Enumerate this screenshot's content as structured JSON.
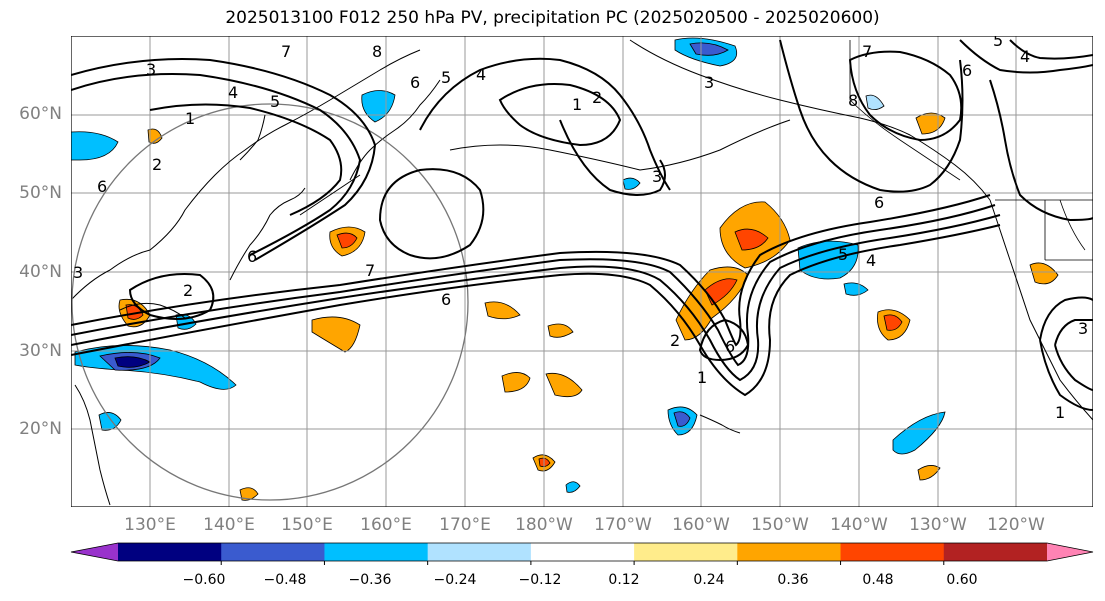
{
  "title": "2025013100 F012 250 hPa PV, precipitation PC (2025020500 - 2025020600)",
  "lat_labels": [
    "60°N",
    "50°N",
    "40°N",
    "30°N",
    "20°N"
  ],
  "lon_labels": [
    "130°E",
    "140°E",
    "150°E",
    "160°E",
    "170°E",
    "180°W",
    "170°W",
    "160°W",
    "150°W",
    "140°W",
    "130°W",
    "120°W"
  ],
  "contour_labels": [
    "1",
    "2",
    "3",
    "4",
    "5",
    "6",
    "7",
    "8"
  ],
  "colorbar": {
    "ticks": [
      "−0.60",
      "−0.48",
      "−0.36",
      "−0.24",
      "−0.12",
      "0.12",
      "0.24",
      "0.36",
      "0.48",
      "0.60"
    ],
    "colors": [
      "#9932cc",
      "#000080",
      "#3a5bcf",
      "#00bfff",
      "#b0e2ff",
      "#ffffff",
      "#ffec8b",
      "#ffa500",
      "#ff4500",
      "#b22222",
      "#ff83b4"
    ]
  }
}
